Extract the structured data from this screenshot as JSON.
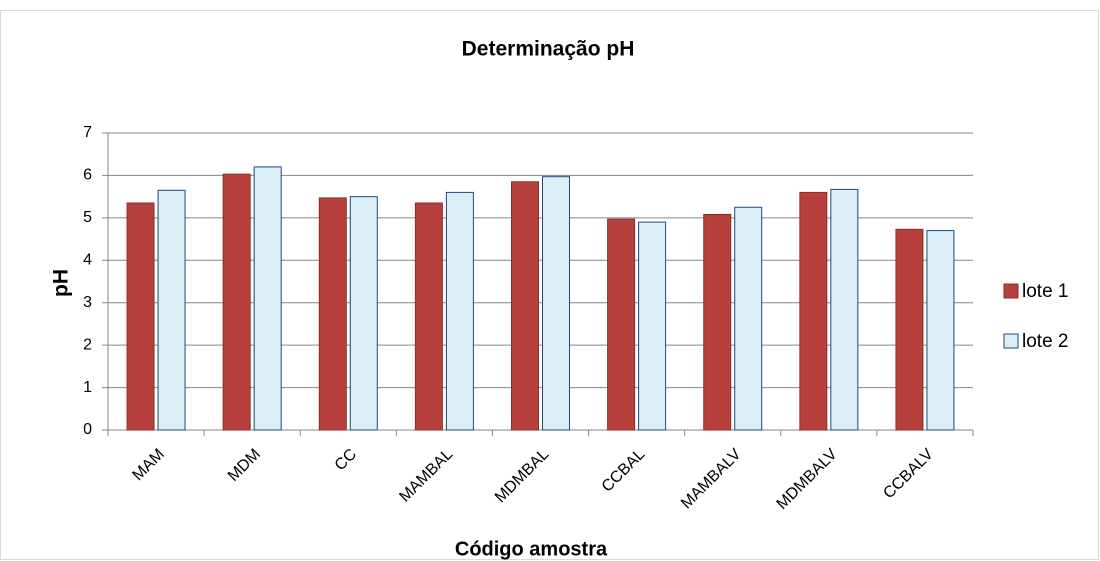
{
  "chart_data": {
    "type": "bar",
    "title": "Determinação pH",
    "x_label": "Código amostra",
    "y_label": "pH",
    "categories": [
      "MAM",
      "MDM",
      "CC",
      "MAMBAL",
      "MDMBAL",
      "CCBAL",
      "MAMBALV",
      "MDMBALV",
      "CCBALV"
    ],
    "series": [
      {
        "name": "lote 1",
        "color": "#b8403c",
        "values": [
          5.35,
          6.03,
          5.47,
          5.35,
          5.85,
          4.97,
          5.08,
          5.6,
          4.73
        ]
      },
      {
        "name": "lote 2",
        "color": "#dbeef5",
        "values": [
          5.65,
          6.2,
          5.5,
          5.6,
          5.97,
          4.9,
          5.25,
          5.67,
          4.7
        ]
      }
    ],
    "ylim": [
      0,
      7
    ],
    "yticks": [
      0,
      1,
      2,
      3,
      4,
      5,
      6,
      7
    ],
    "grid": true,
    "legend": "right"
  }
}
